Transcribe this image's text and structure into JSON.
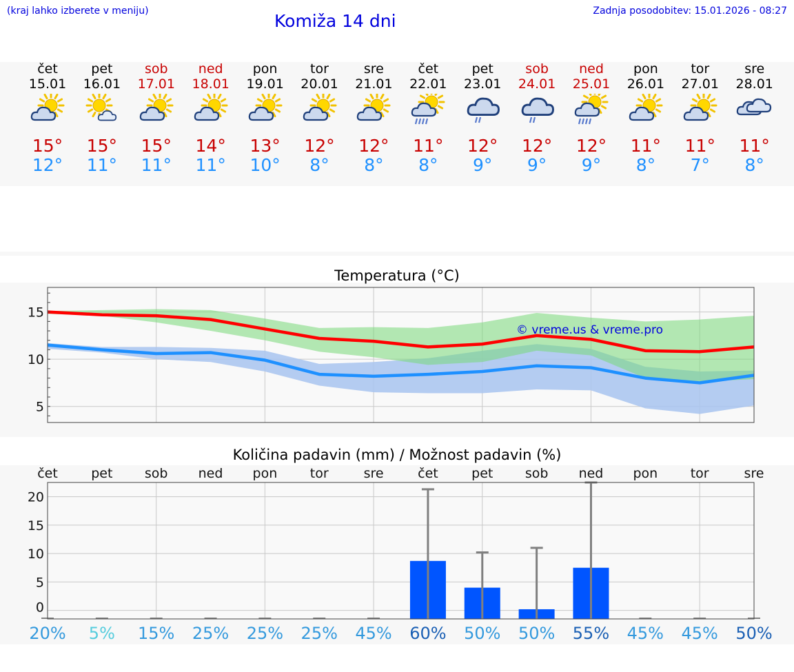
{
  "header": {
    "hint": "(kraj lahko izberete v meniju)",
    "title": "Komiža 14 dni",
    "updated": "Zadnja posodobitev: 15.01.2026 - 08:27"
  },
  "colors": {
    "max": "#c80000",
    "min": "#1e90ff",
    "link": "#0000dd",
    "bar": "#0055ff"
  },
  "days": [
    {
      "name": "čet",
      "date": "15.01",
      "weekend": false,
      "icon": "partly-cloudy-icon",
      "tmax": "15°",
      "tmin": "12°"
    },
    {
      "name": "pet",
      "date": "16.01",
      "weekend": false,
      "icon": "sun-small-cloud-icon",
      "tmax": "15°",
      "tmin": "11°"
    },
    {
      "name": "sob",
      "date": "17.01",
      "weekend": true,
      "icon": "partly-cloudy-icon",
      "tmax": "15°",
      "tmin": "11°"
    },
    {
      "name": "ned",
      "date": "18.01",
      "weekend": true,
      "icon": "partly-cloudy-icon",
      "tmax": "14°",
      "tmin": "11°"
    },
    {
      "name": "pon",
      "date": "19.01",
      "weekend": false,
      "icon": "partly-cloudy-icon",
      "tmax": "13°",
      "tmin": "10°"
    },
    {
      "name": "tor",
      "date": "20.01",
      "weekend": false,
      "icon": "partly-cloudy-icon",
      "tmax": "12°",
      "tmin": "8°"
    },
    {
      "name": "sre",
      "date": "21.01",
      "weekend": false,
      "icon": "partly-cloudy-icon",
      "tmax": "12°",
      "tmin": "8°"
    },
    {
      "name": "čet",
      "date": "22.01",
      "weekend": false,
      "icon": "sun-rain-icon",
      "tmax": "11°",
      "tmin": "8°"
    },
    {
      "name": "pet",
      "date": "23.01",
      "weekend": false,
      "icon": "cloud-rain-icon",
      "tmax": "12°",
      "tmin": "9°"
    },
    {
      "name": "sob",
      "date": "24.01",
      "weekend": true,
      "icon": "cloud-rain-icon",
      "tmax": "12°",
      "tmin": "9°"
    },
    {
      "name": "ned",
      "date": "25.01",
      "weekend": true,
      "icon": "sun-rain-icon",
      "tmax": "12°",
      "tmin": "9°"
    },
    {
      "name": "pon",
      "date": "26.01",
      "weekend": false,
      "icon": "partly-cloudy-icon",
      "tmax": "11°",
      "tmin": "8°"
    },
    {
      "name": "tor",
      "date": "27.01",
      "weekend": false,
      "icon": "partly-cloudy-icon",
      "tmax": "11°",
      "tmin": "7°"
    },
    {
      "name": "sre",
      "date": "28.01",
      "weekend": false,
      "icon": "cloudy-icon",
      "tmax": "11°",
      "tmin": "8°"
    }
  ],
  "chart_data": [
    {
      "type": "line",
      "title": "Temperatura (°C)",
      "watermark": "© vreme.us & vreme.pro",
      "ylim": [
        3.3,
        17.6
      ],
      "yticks": [
        "5",
        "10",
        "15"
      ],
      "series": [
        {
          "name": "max",
          "color": "#ff0000",
          "values": [
            15.0,
            14.7,
            14.6,
            14.2,
            13.2,
            12.2,
            11.9,
            11.3,
            11.6,
            12.5,
            12.1,
            10.9,
            10.8,
            11.3
          ]
        },
        {
          "name": "min",
          "color": "#1e90ff",
          "values": [
            11.5,
            11.0,
            10.6,
            10.7,
            9.9,
            8.4,
            8.2,
            8.4,
            8.7,
            9.3,
            9.1,
            8.0,
            7.5,
            8.3
          ]
        },
        {
          "name": "max_band",
          "color": "#a8e6a0",
          "low": [
            14.8,
            14.6,
            13.9,
            13.0,
            12.0,
            10.8,
            10.2,
            9.4,
            9.7,
            10.9,
            10.4,
            8.0,
            7.6,
            7.9
          ],
          "high": [
            15.1,
            15.2,
            15.3,
            15.2,
            14.3,
            13.3,
            13.4,
            13.3,
            13.9,
            14.9,
            14.4,
            14.0,
            14.2,
            14.6
          ]
        },
        {
          "name": "min_band",
          "color": "#a8c4f0",
          "low": [
            11.1,
            10.7,
            10.0,
            9.7,
            8.7,
            7.2,
            6.5,
            6.4,
            6.4,
            6.8,
            6.7,
            4.8,
            4.2,
            5.1
          ],
          "high": [
            11.7,
            11.3,
            11.3,
            11.2,
            10.9,
            9.5,
            9.7,
            10.1,
            10.9,
            11.6,
            11.1,
            9.2,
            8.7,
            8.8
          ]
        }
      ]
    },
    {
      "type": "bar",
      "title": "Količina padavin (mm) / Možnost padavin (%)",
      "categories": [
        "čet",
        "pet",
        "sob",
        "ned",
        "pon",
        "tor",
        "sre",
        "čet",
        "pet",
        "sob",
        "ned",
        "pon",
        "tor",
        "sre"
      ],
      "ylim": [
        -1.5,
        22.5
      ],
      "yticks": [
        "0",
        "5",
        "10",
        "15",
        "20"
      ],
      "values": [
        0,
        0,
        0,
        0,
        0,
        0,
        0,
        8.7,
        4.0,
        0.2,
        7.5,
        0,
        0,
        0
      ],
      "error_high": [
        0,
        0,
        0,
        0,
        0,
        0,
        0,
        21.3,
        10.2,
        11.0,
        22.5,
        0,
        0,
        0
      ],
      "probability": [
        "20%",
        "5%",
        "15%",
        "25%",
        "25%",
        "25%",
        "45%",
        "60%",
        "50%",
        "50%",
        "55%",
        "45%",
        "45%",
        "50%"
      ],
      "probability_colors": [
        "#3399dd",
        "#55ccdd",
        "#3399dd",
        "#3399dd",
        "#3399dd",
        "#3399dd",
        "#3399dd",
        "#1a5fb4",
        "#3399dd",
        "#3399dd",
        "#1a5fb4",
        "#3399dd",
        "#3399dd",
        "#1a5fb4"
      ]
    }
  ]
}
